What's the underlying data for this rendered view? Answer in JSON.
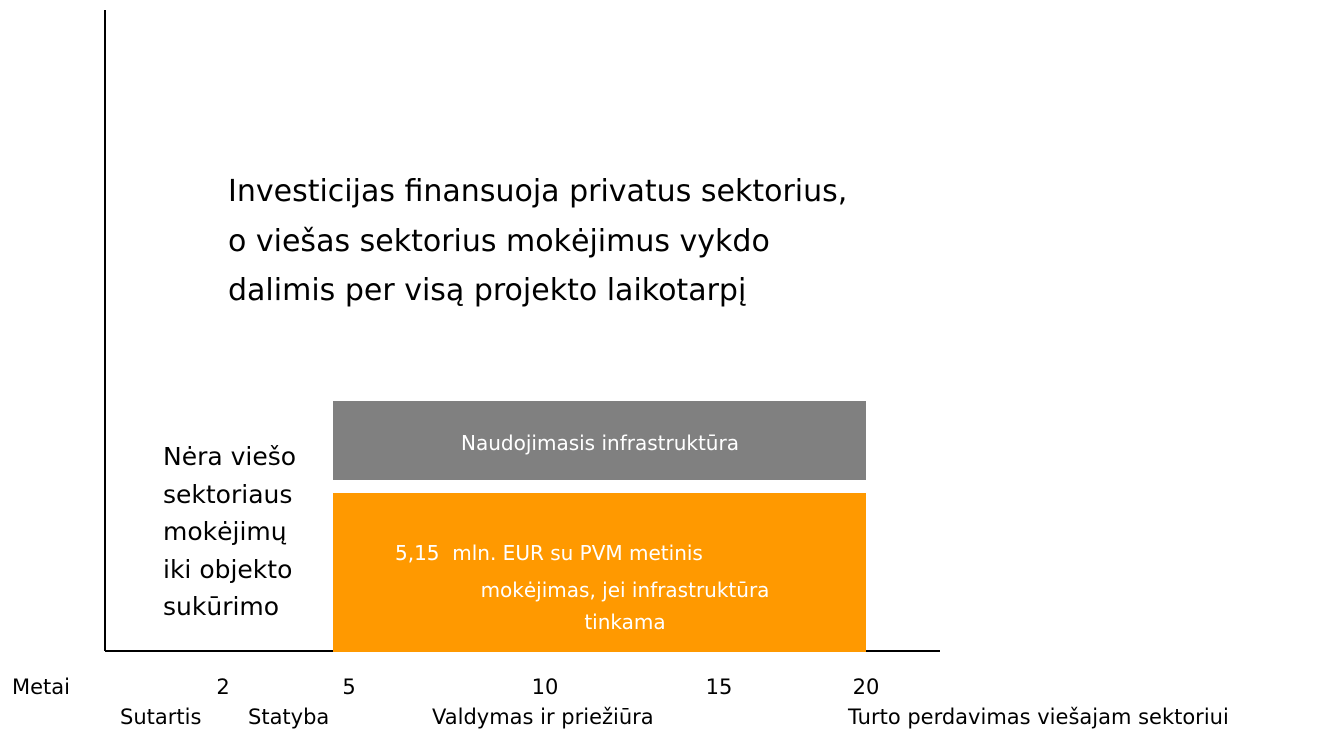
{
  "heading": [
    "Investicijas finansuoja privatus sektorius,",
    "o viešas sektorius mokėjimus vykdo",
    "dalimis per visą projekto laikotarpį"
  ],
  "left_note": [
    "Nėra viešo",
    "sektoriaus",
    "mokėjimų",
    "iki objekto",
    "sukūrimo"
  ],
  "gray_box": {
    "label": "Naudojimasis infrastruktūra"
  },
  "orange_box": {
    "lines": [
      "5,15  mln. EUR su PVM metinis",
      "mokėjimas, jei infrastruktūra",
      "tinkama"
    ]
  },
  "timeline": {
    "label": "Metai",
    "years": [
      "2",
      "5",
      "10",
      "15",
      "20"
    ],
    "phases": [
      "Sutartis",
      "Statyba",
      "Valdymas ir priežiūra",
      "Turto perdavimas viešajam sektoriui"
    ]
  }
}
